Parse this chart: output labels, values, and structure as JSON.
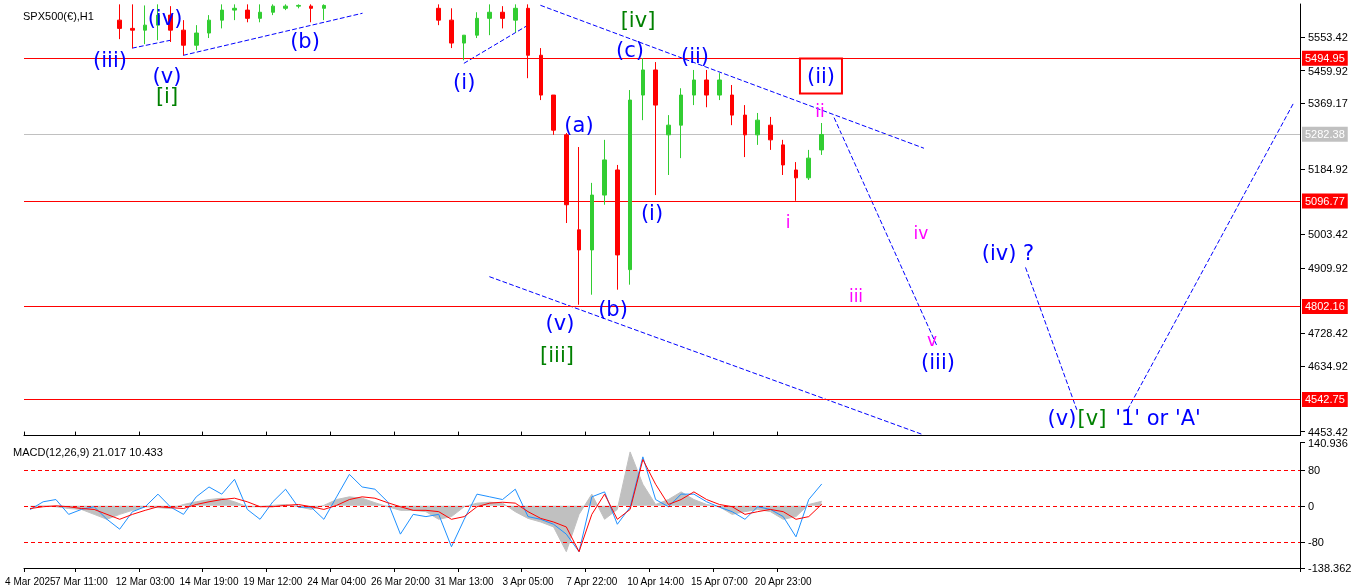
{
  "chart_data": [
    {
      "type": "candlestick",
      "title": "SPX500(€),H1",
      "tick_labels": "y",
      "grid": false,
      "categories": [
        "4 Mar 2025",
        null,
        null,
        null,
        "7 Mar 11:00",
        null,
        null,
        null,
        null,
        "12 Mar 03:00",
        null,
        null,
        null,
        null,
        "14 Mar 19:00",
        null,
        null,
        null,
        null,
        "19 Mar 12:00",
        null,
        null,
        null,
        null,
        "24 Mar 04:00",
        null,
        null,
        null,
        null,
        "26 Mar 20:00",
        null,
        null,
        null,
        null,
        "31 Mar 13:00",
        null,
        null,
        null,
        null,
        "3 Apr 05:00",
        null,
        null,
        null,
        null,
        "7 Apr 22:00",
        null,
        null,
        null,
        null,
        "10 Apr 14:00",
        null,
        null,
        null,
        null,
        "15 Apr 07:00",
        null,
        null,
        null,
        null,
        "20 Apr 23:00",
        null,
        null,
        null,
        null,
        null,
        null,
        null,
        null,
        null,
        null,
        null,
        null,
        null,
        null,
        null,
        null,
        null,
        null,
        null,
        null,
        null,
        null,
        null,
        null,
        null,
        null,
        null,
        null,
        null,
        null,
        null,
        null,
        null,
        null,
        null,
        null,
        null,
        null,
        null,
        null
      ],
      "ohlc": [
        null,
        null,
        null,
        null,
        null,
        null,
        null,
        [
          5601,
          5645,
          5548,
          5578
        ],
        [
          5578,
          5645,
          5523,
          5573
        ],
        [
          5573,
          5642,
          5534,
          5587
        ],
        [
          5587,
          5645,
          5545,
          5615
        ],
        [
          5615,
          5640,
          5540,
          5573
        ],
        [
          5573,
          5601,
          5503,
          5531
        ],
        [
          5531,
          5587,
          5517,
          5565
        ],
        [
          5565,
          5615,
          5551,
          5601
        ],
        [
          5601,
          5645,
          5578,
          5629
        ],
        [
          5629,
          5645,
          5601,
          5634
        ],
        [
          5629,
          5645,
          5595,
          5606
        ],
        [
          5606,
          5645,
          5595,
          5623
        ],
        [
          5623,
          5645,
          5615,
          5640
        ],
        [
          5634,
          5645,
          5629,
          5640
        ],
        [
          5640,
          5645,
          5634,
          5642
        ],
        [
          5640,
          5645,
          5595,
          5634
        ],
        [
          5634,
          5645,
          5601,
          5642
        ],
        null,
        null,
        null,
        null,
        null,
        null,
        null,
        null,
        [
          5634,
          5645,
          5587,
          5601
        ],
        [
          5601,
          5634,
          5523,
          5537
        ],
        [
          5537,
          5559,
          5489,
          5559
        ],
        [
          5559,
          5623,
          5551,
          5606
        ],
        [
          5606,
          5645,
          5559,
          5623
        ],
        [
          5623,
          5640,
          5578,
          5606
        ],
        [
          5601,
          5645,
          5567,
          5634
        ],
        [
          5634,
          5645,
          5439,
          5503
        ],
        [
          5503,
          5523,
          5378,
          5392
        ],
        [
          5392,
          5392,
          5281,
          5294
        ],
        [
          5281,
          5286,
          5035,
          5086
        ],
        [
          5016,
          5247,
          4807,
          4960
        ],
        [
          4960,
          5147,
          4835,
          5113
        ],
        [
          5113,
          5267,
          5086,
          5211
        ],
        [
          5183,
          5197,
          4849,
          4946
        ],
        [
          4905,
          5406,
          4863,
          5378
        ],
        [
          5392,
          5495,
          5322,
          5462
        ],
        [
          5462,
          5484,
          5113,
          5364
        ],
        [
          5281,
          5336,
          5169,
          5308
        ],
        [
          5308,
          5411,
          5216,
          5392
        ],
        [
          5392,
          5462,
          5364,
          5434
        ],
        [
          5434,
          5462,
          5358,
          5392
        ],
        [
          5392,
          5453,
          5378,
          5434
        ],
        [
          5392,
          5420,
          5308,
          5336
        ],
        [
          5336,
          5364,
          5219,
          5281
        ],
        [
          5281,
          5342,
          5253,
          5322
        ],
        [
          5308,
          5331,
          5239,
          5267
        ],
        [
          5253,
          5267,
          5169,
          5197
        ],
        [
          5183,
          5205,
          5097,
          5161
        ],
        [
          5161,
          5239,
          5155,
          5216
        ],
        [
          5239,
          5314,
          5225,
          5282
        ],
        null,
        null,
        null,
        null,
        null,
        null,
        null,
        null,
        null,
        null,
        null,
        null,
        null,
        null,
        null,
        null,
        null,
        null,
        null,
        null,
        null,
        null,
        null,
        null,
        null,
        null,
        null,
        null,
        null,
        null,
        null,
        null,
        null,
        null,
        null,
        null,
        null
      ],
      "ylim": [
        4442,
        5646
      ],
      "yticks": [
        5553.42,
        5459.92,
        5369.17,
        5184.92,
        5003.42,
        4909.92,
        4728.42,
        4634.92,
        4453.42
      ],
      "ref_lines": [
        {
          "axis": "y",
          "value": 5494.95,
          "label": "5494.95",
          "color": "#ff0000"
        },
        {
          "axis": "y",
          "value": 5282.38,
          "label": "5282.38",
          "color": "#c0c0c0"
        },
        {
          "axis": "y",
          "value": 5096.77,
          "label": "5096.77",
          "color": "#ff0000"
        },
        {
          "axis": "y",
          "value": 4802.16,
          "label": "4802.16",
          "color": "#ff0000"
        },
        {
          "axis": "y",
          "value": 4542.75,
          "label": "4542.75",
          "color": "#ff0000"
        }
      ],
      "series": [
        {
          "type": "line",
          "color": "#0000ff",
          "line_style": "dashed",
          "marker": "none",
          "values": [
            null,
            null,
            null,
            null,
            null,
            null,
            null,
            null,
            5523,
            null,
            null,
            5545,
            null,
            null,
            null,
            null,
            null,
            null,
            null,
            null,
            null,
            null,
            null,
            null,
            null,
            null,
            null,
            null,
            null,
            null,
            null,
            null,
            null,
            null,
            null,
            null,
            null,
            null,
            null,
            null,
            null,
            null,
            null,
            null,
            null,
            null,
            null,
            null,
            null,
            null,
            null,
            null,
            null,
            null,
            null,
            null,
            null,
            null,
            null,
            null,
            null,
            null,
            null,
            null,
            null,
            null,
            null,
            null,
            null,
            null,
            null,
            null,
            null,
            null,
            null,
            null,
            null,
            null,
            null,
            null,
            null,
            null,
            null,
            null,
            null,
            null,
            null,
            null,
            null,
            null,
            null,
            null,
            null,
            null,
            null,
            null,
            null,
            null,
            null,
            null
          ]
        },
        {
          "type": "line",
          "color": "#0000ff",
          "line_style": "dashed",
          "marker": "none",
          "values": [
            null,
            null,
            null,
            null,
            null,
            null,
            null,
            null,
            null,
            null,
            null,
            null,
            5503,
            null,
            null,
            null,
            null,
            null,
            null,
            null,
            null,
            null,
            null,
            null,
            null,
            null,
            5620,
            null,
            null,
            null,
            null,
            null,
            null,
            null,
            null,
            null,
            null,
            null,
            null,
            null,
            null,
            null,
            null,
            null,
            null,
            null,
            null,
            null,
            null,
            null,
            null,
            null,
            null,
            null,
            null,
            null,
            null,
            null,
            null,
            null,
            null,
            null,
            null,
            null,
            null,
            null,
            null,
            null,
            null,
            null,
            null,
            null,
            null,
            null,
            null,
            null,
            null,
            null,
            null,
            null,
            null,
            null,
            null,
            null,
            null,
            null,
            null,
            null,
            null,
            null,
            null,
            null,
            null,
            null,
            null,
            null,
            null,
            null,
            null,
            null
          ]
        },
        {
          "type": "line",
          "color": "#0000ff",
          "line_style": "dashed",
          "marker": "none",
          "values": [
            null,
            null,
            null,
            null,
            null,
            null,
            null,
            null,
            null,
            null,
            null,
            null,
            null,
            null,
            null,
            null,
            null,
            null,
            null,
            null,
            null,
            null,
            null,
            null,
            null,
            null,
            null,
            null,
            null,
            null,
            null,
            null,
            null,
            null,
            5481,
            null,
            null,
            null,
            null,
            5587,
            null,
            null,
            null,
            null,
            null,
            null,
            null,
            null,
            null,
            null,
            null,
            null,
            null,
            null,
            null,
            null,
            null,
            null,
            null,
            null,
            null,
            null,
            null,
            null,
            null,
            null,
            null,
            null,
            null,
            null,
            null,
            null,
            null,
            null,
            null,
            null,
            null,
            null,
            null,
            null,
            null,
            null,
            null,
            null,
            null,
            null,
            null,
            null,
            null,
            null,
            null,
            null,
            null,
            null,
            null,
            null,
            null,
            null,
            null,
            null
          ]
        },
        {
          "type": "line",
          "color": "#0000ff",
          "line_style": "dashed",
          "marker": "none",
          "values": [
            null,
            null,
            null,
            null,
            null,
            null,
            null,
            null,
            null,
            null,
            null,
            null,
            null,
            null,
            null,
            null,
            null,
            null,
            null,
            null,
            null,
            null,
            null,
            null,
            null,
            null,
            null,
            null,
            null,
            null,
            null,
            null,
            null,
            null,
            null,
            null,
            null,
            null,
            null,
            null,
            5642,
            null,
            null,
            null,
            null,
            null,
            null,
            null,
            null,
            null,
            null,
            null,
            null,
            null,
            null,
            null,
            null,
            null,
            null,
            null,
            null,
            null,
            null,
            null,
            null,
            null,
            null,
            null,
            null,
            null,
            5244,
            null,
            null,
            null,
            null,
            null,
            null,
            null,
            null,
            null,
            null,
            null,
            null,
            null,
            null,
            null,
            null,
            null,
            null,
            null,
            null,
            null,
            null,
            null,
            null,
            null,
            null,
            null,
            null,
            null
          ]
        },
        {
          "type": "line",
          "color": "#0000ff",
          "line_style": "dashed",
          "marker": "none",
          "values": [
            null,
            null,
            null,
            null,
            null,
            null,
            null,
            null,
            null,
            null,
            null,
            null,
            null,
            null,
            null,
            null,
            null,
            null,
            null,
            null,
            null,
            null,
            null,
            null,
            null,
            null,
            null,
            null,
            null,
            null,
            null,
            null,
            null,
            null,
            null,
            null,
            4885,
            null,
            null,
            null,
            null,
            null,
            null,
            null,
            null,
            null,
            null,
            null,
            null,
            null,
            null,
            null,
            null,
            null,
            null,
            null,
            null,
            null,
            null,
            null,
            null,
            null,
            null,
            null,
            null,
            null,
            null,
            null,
            null,
            null,
            4444,
            null,
            null,
            null,
            null,
            null,
            null,
            null,
            null,
            null,
            null,
            null,
            null,
            null,
            null,
            null,
            null,
            null,
            null,
            null,
            null,
            null,
            null,
            null,
            null,
            null,
            null,
            null,
            null,
            null
          ]
        },
        {
          "type": "line",
          "color": "#0000ff",
          "line_style": "dashed",
          "marker": "none",
          "values": [
            null,
            null,
            null,
            null,
            null,
            null,
            null,
            null,
            null,
            null,
            null,
            null,
            null,
            null,
            null,
            null,
            null,
            null,
            null,
            null,
            null,
            null,
            null,
            null,
            null,
            null,
            null,
            null,
            null,
            null,
            null,
            null,
            null,
            null,
            null,
            null,
            null,
            null,
            null,
            null,
            null,
            null,
            null,
            null,
            null,
            null,
            null,
            null,
            null,
            null,
            null,
            null,
            null,
            null,
            null,
            null,
            null,
            null,
            null,
            null,
            null,
            null,
            null,
            5328,
            null,
            null,
            null,
            null,
            null,
            null,
            null,
            4696,
            null,
            null,
            null,
            null,
            null,
            null,
            null,
            null,
            null,
            null,
            null,
            null,
            null,
            null,
            null,
            null,
            null,
            null,
            null,
            null,
            null,
            null,
            null,
            null,
            null,
            null,
            null,
            null
          ]
        },
        {
          "type": "line",
          "color": "#0000ff",
          "line_style": "dashed",
          "marker": "none",
          "values": [
            null,
            null,
            null,
            null,
            null,
            null,
            null,
            null,
            null,
            null,
            null,
            null,
            null,
            null,
            null,
            null,
            null,
            null,
            null,
            null,
            null,
            null,
            null,
            null,
            null,
            null,
            null,
            null,
            null,
            null,
            null,
            null,
            null,
            null,
            null,
            null,
            null,
            null,
            null,
            null,
            null,
            null,
            null,
            null,
            null,
            null,
            null,
            null,
            null,
            null,
            null,
            null,
            null,
            null,
            null,
            null,
            null,
            null,
            null,
            null,
            null,
            null,
            null,
            null,
            null,
            null,
            null,
            null,
            null,
            null,
            null,
            null,
            null,
            null,
            null,
            null,
            null,
            null,
            4910,
            null,
            null,
            null,
            4515,
            null,
            null,
            null,
            null,
            null,
            null,
            null,
            null,
            null,
            null,
            null,
            null,
            null,
            null,
            null,
            null,
            null
          ]
        },
        {
          "type": "line",
          "color": "#0000ff",
          "line_style": "dashed",
          "marker": "none",
          "values": [
            null,
            null,
            null,
            null,
            null,
            null,
            null,
            null,
            null,
            null,
            null,
            null,
            null,
            null,
            null,
            null,
            null,
            null,
            null,
            null,
            null,
            null,
            null,
            null,
            null,
            null,
            null,
            null,
            null,
            null,
            null,
            null,
            null,
            null,
            null,
            null,
            null,
            null,
            null,
            null,
            null,
            null,
            null,
            null,
            null,
            null,
            null,
            null,
            null,
            null,
            null,
            null,
            null,
            null,
            null,
            null,
            null,
            null,
            null,
            null,
            null,
            null,
            null,
            null,
            null,
            null,
            null,
            null,
            null,
            null,
            null,
            null,
            null,
            null,
            null,
            null,
            null,
            null,
            null,
            null,
            null,
            null,
            null,
            null,
            null,
            null,
            4515,
            null,
            null,
            null,
            null,
            null,
            null,
            null,
            null,
            null,
            null,
            null,
            null,
            5370
          ]
        }
      ],
      "annotations": [
        "(iii)",
        "(v)",
        "[i]",
        "(iv)",
        "(b)",
        {
          "text": "(i)",
          "x": "31 Mar 13:00",
          "y": 5489
        },
        "[iv]",
        "(c)",
        "(ii)",
        "(ii)",
        "ii",
        "(a)",
        "(i)",
        "i",
        "(v)",
        "[iii]",
        "(b)",
        "iv",
        "iii",
        "v",
        "(iii)",
        "(iv) ?",
        "(v)",
        "[v]",
        "'1' or 'A'"
      ]
    },
    {
      "type": "line",
      "title": "MACD(12,26,9) 21.017 10.433",
      "grid": false,
      "marker": "none",
      "categories": [
        "4 Mar 2025",
        null,
        null,
        null,
        "7 Mar 11:00",
        null,
        null,
        null,
        null,
        "12 Mar 03:00",
        null,
        null,
        null,
        null,
        "14 Mar 19:00",
        null,
        null,
        null,
        null,
        "19 Mar 12:00",
        null,
        null,
        null,
        null,
        "24 Mar 04:00",
        null,
        null,
        null,
        null,
        "26 Mar 20:00",
        null,
        null,
        null,
        null,
        "31 Mar 13:00",
        null,
        null,
        null,
        null,
        "3 Apr 05:00",
        null,
        null,
        null,
        null,
        "7 Apr 22:00",
        null,
        null,
        null,
        null,
        "10 Apr 14:00",
        null,
        null,
        null,
        null,
        "15 Apr 07:00",
        null,
        null,
        null,
        null,
        "20 Apr 23:00",
        null,
        null,
        null,
        null,
        null,
        null,
        null,
        null,
        null,
        null,
        null,
        null,
        null,
        null,
        null,
        null,
        null,
        null,
        null,
        null,
        null,
        null,
        null,
        null,
        null,
        null,
        null,
        null,
        null,
        null,
        null,
        null,
        null,
        null,
        null,
        null,
        null,
        null,
        null,
        null
      ],
      "ylim": [
        -138.362,
        140.936
      ],
      "yticks": [
        140.936,
        80,
        0,
        -80,
        -138.362
      ],
      "ref_lines": [
        {
          "axis": "y",
          "value": 80,
          "color": "#ff0000",
          "line_style": "dashed"
        },
        {
          "axis": "y",
          "value": 0,
          "color": "#ff0000",
          "line_style": "dashed"
        },
        {
          "axis": "y",
          "value": -80,
          "color": "#ff0000",
          "line_style": "dashed"
        }
      ],
      "series": [
        {
          "type": "area",
          "color": "#c0c0c0",
          "values": [
            -2,
            0,
            -2,
            -6,
            -8,
            -19,
            -30,
            -19,
            -10,
            -2,
            -4,
            -6,
            3,
            9,
            14,
            17,
            9,
            -2,
            -2,
            1,
            3,
            -2,
            -8,
            1,
            14,
            20,
            17,
            7,
            -2,
            -10,
            -10,
            -13,
            -30,
            -24,
            -2,
            6,
            8,
            6,
            -13,
            -28,
            -36,
            -47,
            -102,
            -19,
            26,
            -30,
            -8,
            120,
            48,
            3,
            14,
            31,
            14,
            3,
            -2,
            -19,
            -13,
            -8,
            -13,
            -30,
            -24,
            3,
            10,
            null,
            null,
            null,
            null,
            null,
            null,
            null,
            null,
            null,
            null,
            null,
            null,
            null,
            null,
            null,
            null,
            null,
            null,
            null,
            null,
            null,
            null,
            null,
            null,
            null,
            null,
            null,
            null,
            null,
            null,
            null,
            null,
            null,
            null,
            null,
            null,
            null
          ]
        },
        {
          "type": "line",
          "color": "#1e90ff",
          "values": [
            -8,
            9,
            14,
            -19,
            -8,
            -2,
            -30,
            -52,
            -13,
            -2,
            26,
            -3,
            -19,
            20,
            42,
            26,
            59,
            -8,
            -30,
            9,
            37,
            -3,
            -3,
            -30,
            20,
            70,
            42,
            37,
            9,
            -63,
            -19,
            -24,
            -19,
            -91,
            -30,
            26,
            20,
            14,
            37,
            -24,
            -30,
            -41,
            -63,
            -102,
            20,
            31,
            -41,
            -3,
            109,
            14,
            -2,
            26,
            26,
            9,
            -3,
            -13,
            -30,
            -2,
            -8,
            -24,
            -69,
            14,
            48,
            null,
            null,
            null,
            null,
            null,
            null,
            null,
            null,
            null,
            null,
            null,
            null,
            null,
            null,
            null,
            null,
            null,
            null,
            null,
            null,
            null,
            null,
            null,
            null,
            null,
            null,
            null,
            null,
            null,
            null,
            null,
            null,
            null,
            null,
            null,
            null,
            null
          ]
        },
        {
          "type": "line",
          "color": "#ff0000",
          "values": [
            -6,
            -2,
            0,
            -2,
            -6,
            -8,
            -19,
            -30,
            -19,
            -10,
            -2,
            -4,
            -6,
            3,
            9,
            14,
            17,
            9,
            -2,
            -2,
            1,
            3,
            -2,
            -8,
            1,
            14,
            20,
            17,
            7,
            -2,
            -10,
            -10,
            -13,
            -30,
            -24,
            -2,
            6,
            8,
            6,
            -13,
            -28,
            -36,
            -47,
            -102,
            -19,
            26,
            -30,
            -8,
            103,
            48,
            3,
            14,
            31,
            14,
            3,
            -2,
            -19,
            -13,
            -8,
            -13,
            -30,
            -24,
            3,
            null,
            null,
            null,
            null,
            null,
            null,
            null,
            null,
            null,
            null,
            null,
            null,
            null,
            null,
            null,
            null,
            null,
            null,
            null,
            null,
            null,
            null,
            null,
            null,
            null,
            null,
            null,
            null,
            null,
            null,
            null,
            null,
            null,
            null,
            null,
            null,
            null
          ]
        }
      ]
    }
  ]
}
